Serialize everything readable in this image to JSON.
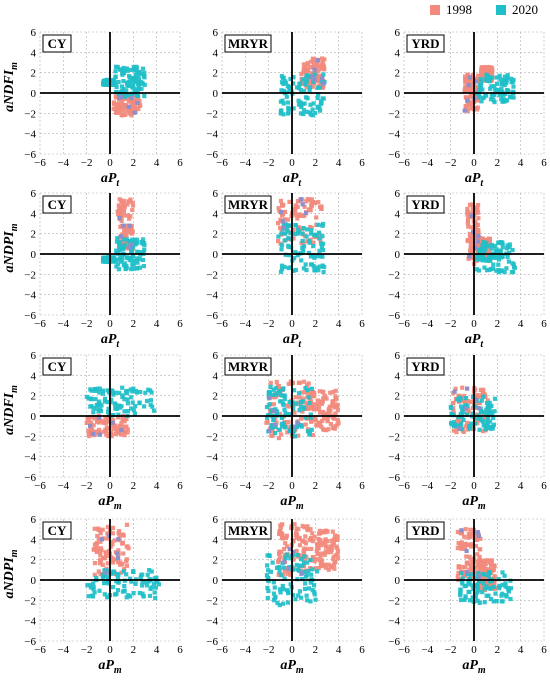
{
  "legend": {
    "position": "top-right",
    "items": [
      {
        "label": "1998",
        "color": "#F28A7D"
      },
      {
        "label": "2020",
        "color": "#1FBFC9"
      }
    ]
  },
  "colors": {
    "series_1998": "#F28A7D",
    "series_2020": "#1FBFC9",
    "mixed": "#8C8FCB",
    "axis": "#000000",
    "grid": "#B0B0B0"
  },
  "y_tick_labels": [
    "6",
    "4",
    "2",
    "0",
    "−2",
    "−4",
    "−6"
  ],
  "x_tick_labels": [
    "−6",
    "−4",
    "−2",
    "0",
    "2",
    "4",
    "6"
  ],
  "chart_data": [
    {
      "type": "scatter",
      "panel": "CY",
      "row": 1,
      "xlabel": "aPt",
      "ylabel": "aNDFIm",
      "xlim": [
        -6,
        6
      ],
      "ylim": [
        -6,
        6
      ],
      "grid": true,
      "series": [
        {
          "name": "1998",
          "clusters": [
            {
              "x": [
                0.3,
                2.6
              ],
              "y": [
                -2.2,
                -0.2
              ]
            }
          ]
        },
        {
          "name": "2020",
          "clusters": [
            {
              "x": [
                0.4,
                3.0
              ],
              "y": [
                -0.4,
                2.6
              ]
            },
            {
              "x": [
                -0.6,
                0.4
              ],
              "y": [
                0.8,
                1.3
              ]
            }
          ]
        }
      ]
    },
    {
      "type": "scatter",
      "panel": "MRYR",
      "row": 1,
      "xlabel": "aPt",
      "ylabel": "",
      "xlim": [
        -6,
        6
      ],
      "ylim": [
        -6,
        6
      ],
      "grid": true,
      "series": [
        {
          "name": "1998",
          "clusters": [
            {
              "x": [
                0.8,
                2.8
              ],
              "y": [
                0.5,
                3.4
              ]
            }
          ]
        },
        {
          "name": "2020",
          "clusters": [
            {
              "x": [
                -1.0,
                2.8
              ],
              "y": [
                -2.2,
                2.0
              ]
            }
          ]
        }
      ]
    },
    {
      "type": "scatter",
      "panel": "YRD",
      "row": 1,
      "xlabel": "aPt",
      "ylabel": "",
      "xlim": [
        -6,
        6
      ],
      "ylim": [
        -6,
        6
      ],
      "grid": true,
      "series": [
        {
          "name": "1998",
          "clusters": [
            {
              "x": [
                -0.8,
                0.4
              ],
              "y": [
                -1.8,
                1.9
              ]
            },
            {
              "x": [
                0.6,
                1.6
              ],
              "y": [
                1.2,
                2.6
              ]
            }
          ]
        },
        {
          "name": "2020",
          "clusters": [
            {
              "x": [
                0.2,
                3.4
              ],
              "y": [
                -0.9,
                1.8
              ]
            }
          ]
        }
      ]
    },
    {
      "type": "scatter",
      "panel": "CY",
      "row": 2,
      "xlabel": "aPt",
      "ylabel": "aNDPIm",
      "xlim": [
        -6,
        6
      ],
      "ylim": [
        -6,
        6
      ],
      "grid": true,
      "series": [
        {
          "name": "1998",
          "clusters": [
            {
              "x": [
                0.6,
                2.0
              ],
              "y": [
                0.5,
                5.4
              ]
            }
          ]
        },
        {
          "name": "2020",
          "clusters": [
            {
              "x": [
                0.5,
                3.0
              ],
              "y": [
                -1.5,
                1.6
              ]
            },
            {
              "x": [
                -0.6,
                0.4
              ],
              "y": [
                -0.8,
                -0.3
              ]
            }
          ]
        }
      ]
    },
    {
      "type": "scatter",
      "panel": "MRYR",
      "row": 2,
      "xlabel": "aPt",
      "ylabel": "",
      "xlim": [
        -6,
        6
      ],
      "ylim": [
        -6,
        6
      ],
      "grid": true,
      "series": [
        {
          "name": "1998",
          "clusters": [
            {
              "x": [
                -1.2,
                2.6
              ],
              "y": [
                1.0,
                5.4
              ]
            }
          ]
        },
        {
          "name": "2020",
          "clusters": [
            {
              "x": [
                -1.2,
                2.8
              ],
              "y": [
                -1.8,
                3.0
              ]
            }
          ]
        }
      ]
    },
    {
      "type": "scatter",
      "panel": "YRD",
      "row": 2,
      "xlabel": "aPt",
      "ylabel": "",
      "xlim": [
        -6,
        6
      ],
      "ylim": [
        -6,
        6
      ],
      "grid": true,
      "series": [
        {
          "name": "1998",
          "clusters": [
            {
              "x": [
                -0.6,
                0.4
              ],
              "y": [
                -1.0,
                5.0
              ]
            },
            {
              "x": [
                0.3,
                1.4
              ],
              "y": [
                -0.5,
                1.6
              ]
            }
          ]
        },
        {
          "name": "2020",
          "clusters": [
            {
              "x": [
                0.2,
                3.5
              ],
              "y": [
                -1.8,
                1.2
              ]
            }
          ]
        }
      ]
    },
    {
      "type": "scatter",
      "panel": "CY",
      "row": 3,
      "xlabel": "aPm",
      "ylabel": "aNDFIm",
      "xlim": [
        -6,
        6
      ],
      "ylim": [
        -6,
        6
      ],
      "grid": true,
      "series": [
        {
          "name": "1998",
          "clusters": [
            {
              "x": [
                -2.0,
                1.6
              ],
              "y": [
                -2.0,
                0.0
              ]
            }
          ]
        },
        {
          "name": "2020",
          "clusters": [
            {
              "x": [
                -2.0,
                3.8
              ],
              "y": [
                0.0,
                2.8
              ]
            }
          ]
        }
      ]
    },
    {
      "type": "scatter",
      "panel": "MRYR",
      "row": 3,
      "xlabel": "aPm",
      "ylabel": "",
      "xlim": [
        -6,
        6
      ],
      "ylim": [
        -6,
        6
      ],
      "grid": true,
      "series": [
        {
          "name": "1998",
          "clusters": [
            {
              "x": [
                -2.2,
                1.8
              ],
              "y": [
                -2.2,
                3.4
              ]
            },
            {
              "x": [
                1.2,
                4.0
              ],
              "y": [
                -1.5,
                2.5
              ]
            }
          ]
        },
        {
          "name": "2020",
          "clusters": [
            {
              "x": [
                -2.2,
                1.8
              ],
              "y": [
                -2.0,
                3.0
              ]
            }
          ]
        }
      ]
    },
    {
      "type": "scatter",
      "panel": "YRD",
      "row": 3,
      "xlabel": "aPm",
      "ylabel": "",
      "xlim": [
        -6,
        6
      ],
      "ylim": [
        -6,
        6
      ],
      "grid": true,
      "series": [
        {
          "name": "1998",
          "clusters": [
            {
              "x": [
                -1.8,
                1.2
              ],
              "y": [
                -1.6,
                2.8
              ]
            }
          ]
        },
        {
          "name": "2020",
          "clusters": [
            {
              "x": [
                -2.0,
                1.8
              ],
              "y": [
                -1.4,
                1.9
              ]
            }
          ]
        }
      ]
    },
    {
      "type": "scatter",
      "panel": "CY",
      "row": 4,
      "xlabel": "aPm",
      "ylabel": "aNDPIm",
      "xlim": [
        -6,
        6
      ],
      "ylim": [
        -6,
        6
      ],
      "grid": true,
      "series": [
        {
          "name": "1998",
          "clusters": [
            {
              "x": [
                -1.4,
                1.6
              ],
              "y": [
                0.5,
                5.5
              ]
            }
          ]
        },
        {
          "name": "2020",
          "clusters": [
            {
              "x": [
                -2.0,
                4.2
              ],
              "y": [
                -1.8,
                1.0
              ]
            }
          ]
        }
      ]
    },
    {
      "type": "scatter",
      "panel": "MRYR",
      "row": 4,
      "xlabel": "aPm",
      "ylabel": "",
      "xlim": [
        -6,
        6
      ],
      "ylim": [
        -6,
        6
      ],
      "grid": true,
      "series": [
        {
          "name": "1998",
          "clusters": [
            {
              "x": [
                -1.2,
                1.4
              ],
              "y": [
                0.5,
                5.5
              ]
            },
            {
              "x": [
                1.5,
                4.0
              ],
              "y": [
                1.0,
                5.0
              ]
            }
          ]
        },
        {
          "name": "2020",
          "clusters": [
            {
              "x": [
                -2.2,
                2.2
              ],
              "y": [
                -2.5,
                2.5
              ]
            }
          ]
        }
      ]
    },
    {
      "type": "scatter",
      "panel": "YRD",
      "row": 4,
      "xlabel": "aPm",
      "ylabel": "",
      "xlim": [
        -6,
        6
      ],
      "ylim": [
        -6,
        6
      ],
      "grid": true,
      "series": [
        {
          "name": "1998",
          "clusters": [
            {
              "x": [
                -1.4,
                0.6
              ],
              "y": [
                0.0,
                5.0
              ]
            },
            {
              "x": [
                0.4,
                1.8
              ],
              "y": [
                -1.0,
                2.0
              ]
            }
          ]
        },
        {
          "name": "2020",
          "clusters": [
            {
              "x": [
                -1.2,
                3.2
              ],
              "y": [
                -2.3,
                0.8
              ]
            }
          ]
        }
      ]
    }
  ]
}
